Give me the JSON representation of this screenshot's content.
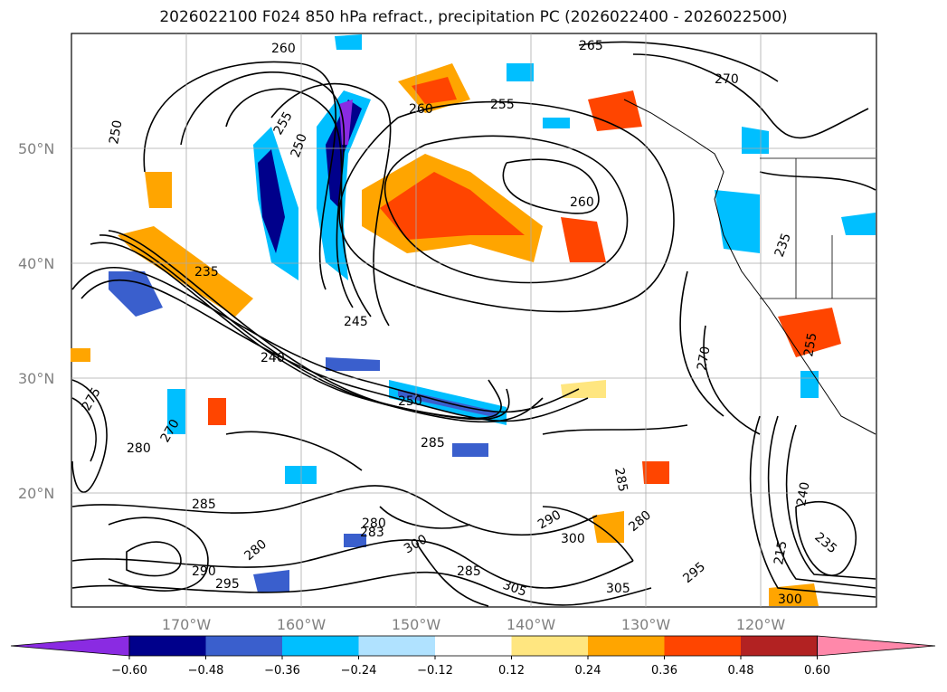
{
  "title": "2026022100 F024 850 hPa refract., precipitation PC (2026022400 - 2026022500)",
  "lat_labels": [
    "50°N",
    "40°N",
    "30°N",
    "20°N"
  ],
  "lon_labels": [
    "170°W",
    "160°W",
    "150°W",
    "140°W",
    "130°W",
    "120°W"
  ],
  "contour_labels": [
    "260",
    "265",
    "270",
    "250",
    "255",
    "250",
    "260",
    "255",
    "260",
    "235",
    "245",
    "240",
    "250",
    "285",
    "275",
    "280",
    "270",
    "285",
    "283",
    "280",
    "290",
    "295",
    "280",
    "300",
    "285",
    "305",
    "290",
    "300",
    "280",
    "305",
    "295",
    "285",
    "270",
    "215",
    "240",
    "235",
    "300",
    "255",
    "235"
  ],
  "colorbar": {
    "ticks": [
      "−0.60",
      "−0.48",
      "−0.36",
      "−0.24",
      "−0.12",
      "0.12",
      "0.24",
      "0.36",
      "0.48",
      "0.60"
    ],
    "colors": [
      "#8a2be2",
      "#00008b",
      "#3a5fcd",
      "#00bfff",
      "#b0e2ff",
      "#ffffff",
      "#ffe680",
      "#ffa500",
      "#ff4500",
      "#b22222",
      "#ff88aa"
    ]
  }
}
